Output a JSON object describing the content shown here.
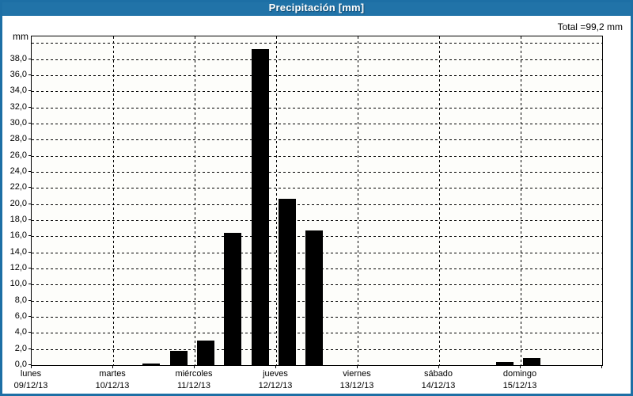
{
  "header": {
    "title": "Precipitación [mm]"
  },
  "summary": {
    "total_label": "Total =99,2 mm"
  },
  "y_axis": {
    "unit_label": "mm",
    "tick_step": 2,
    "max_value": 40.8,
    "tick_labels": [
      "0,0",
      "2,0",
      "4,0",
      "6,0",
      "8,0",
      "10,0",
      "12,0",
      "14,0",
      "16,0",
      "18,0",
      "20,0",
      "22,0",
      "24,0",
      "26,0",
      "28,0",
      "30,0",
      "32,0",
      "34,0",
      "36,0",
      "38,0"
    ]
  },
  "x_axis": {
    "days": [
      {
        "name": "lunes",
        "date": "09/12/13"
      },
      {
        "name": "martes",
        "date": "10/12/13"
      },
      {
        "name": "miércoles",
        "date": "11/12/13"
      },
      {
        "name": "jueves",
        "date": "12/12/13"
      },
      {
        "name": "viernes",
        "date": "13/12/13"
      },
      {
        "name": "sábado",
        "date": "14/12/13"
      },
      {
        "name": "domingo",
        "date": "15/12/13"
      }
    ]
  },
  "colors": {
    "accent_blue": "#2173a8",
    "window_border": "#1d6fa5",
    "bar_color": "#000000",
    "plot_background": "#fdfdfa"
  },
  "chart_data": {
    "type": "bar",
    "title": "Precipitación [mm]",
    "total_text": "Total =99,2 mm",
    "total_mm": 99.2,
    "ylabel": "mm",
    "ylim": [
      0,
      40.8
    ],
    "y_tick_interval": 2,
    "grid": true,
    "legend": "none",
    "slots_per_day": 3,
    "categories": [
      "lunes 09/12/13",
      "martes 10/12/13",
      "miércoles 11/12/13",
      "jueves 12/12/13",
      "viernes 13/12/13",
      "sábado 14/12/13",
      "domingo 15/12/13"
    ],
    "values_by_day": [
      [
        0,
        0,
        0
      ],
      [
        0,
        0.2,
        1.8
      ],
      [
        3.0,
        16.4,
        39.2
      ],
      [
        20.6,
        16.7,
        0
      ],
      [
        0,
        0,
        0
      ],
      [
        0,
        0,
        0.4
      ],
      [
        0.9,
        0,
        0
      ]
    ]
  }
}
